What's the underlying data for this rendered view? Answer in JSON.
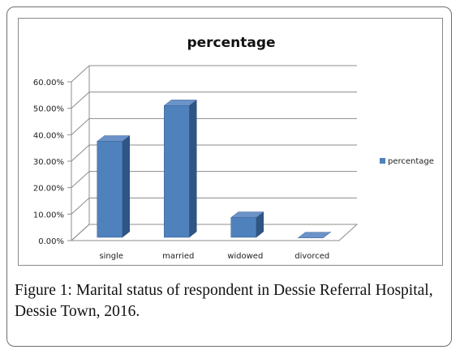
{
  "chart_data": {
    "type": "bar",
    "title": "percentage",
    "categories": [
      "single",
      "married",
      "widowed",
      "divorced"
    ],
    "series": [
      {
        "name": "percentage",
        "values": [
          37.5,
          51.0,
          8.7,
          1.0
        ]
      }
    ],
    "y_ticks": [
      "0.00%",
      "10.00%",
      "20.00%",
      "30.00%",
      "40.00%",
      "50.00%",
      "60.00%"
    ],
    "ylim": [
      0,
      60
    ],
    "grid": true,
    "legend_position": "right",
    "bar_color": "#4f81bd"
  },
  "caption": {
    "label": "Figure 1:",
    "text": " Marital status of respondent in Dessie Referral Hospital, Dessie Town, 2016."
  }
}
